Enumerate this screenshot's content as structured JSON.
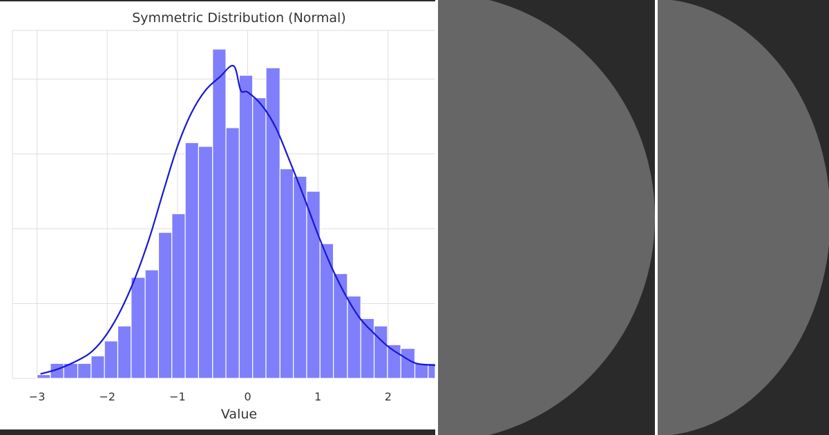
{
  "colors": {
    "background": "#2a2a2a",
    "bar_fill": "#7f7ffb",
    "bar_edge": "#ffffff",
    "kde_line": "#1717d2",
    "grid": "#dddddd",
    "panel_disc": "#666666",
    "divider": "#ffffff"
  },
  "chart_data": {
    "type": "bar",
    "subtype": "histogram",
    "title": "Symmetric Distribution (Normal)",
    "xlabel": "Value",
    "ylabel": "",
    "xlim": [
      -3.35,
      2.67
    ],
    "ylim": [
      0,
      93
    ],
    "grid": true,
    "legend": "none",
    "x_ticks": [
      "−3",
      "−2",
      "−1",
      "0",
      "1",
      "2"
    ],
    "x_tick_values": [
      -3,
      -2,
      -1,
      0,
      1,
      2
    ],
    "bin_edges": [
      -3.0,
      -2.81,
      -2.62,
      -2.42,
      -2.23,
      -2.04,
      -1.85,
      -1.66,
      -1.46,
      -1.27,
      -1.08,
      -0.89,
      -0.7,
      -0.5,
      -0.31,
      -0.12,
      0.07,
      0.26,
      0.46,
      0.65,
      0.84,
      1.03,
      1.22,
      1.42,
      1.61,
      1.8,
      1.99,
      2.18,
      2.38,
      2.57,
      2.67
    ],
    "counts": [
      1,
      4,
      4,
      4,
      6,
      10,
      14,
      27,
      29,
      39,
      44,
      63,
      62,
      88,
      67,
      81,
      75,
      83,
      56,
      54,
      50,
      36,
      28,
      22,
      16,
      14,
      9,
      8,
      4,
      4
    ],
    "kde": {
      "x": [
        -2.95,
        -2.7,
        -2.4,
        -2.2,
        -2.0,
        -1.8,
        -1.6,
        -1.4,
        -1.2,
        -1.0,
        -0.8,
        -0.6,
        -0.4,
        -0.2,
        -0.1,
        0.0,
        0.2,
        0.4,
        0.6,
        0.8,
        1.0,
        1.2,
        1.4,
        1.6,
        1.8,
        2.0,
        2.2,
        2.4,
        2.67
      ],
      "y": [
        1.2,
        2.5,
        5.0,
        7.5,
        12.0,
        18.5,
        27.0,
        37.5,
        50.0,
        62.0,
        71.0,
        77.0,
        80.5,
        83.5,
        77.0,
        76.5,
        73.0,
        67.0,
        58.0,
        48.5,
        38.5,
        29.5,
        22.0,
        16.0,
        12.0,
        8.5,
        6.0,
        4.0,
        3.5
      ]
    }
  }
}
